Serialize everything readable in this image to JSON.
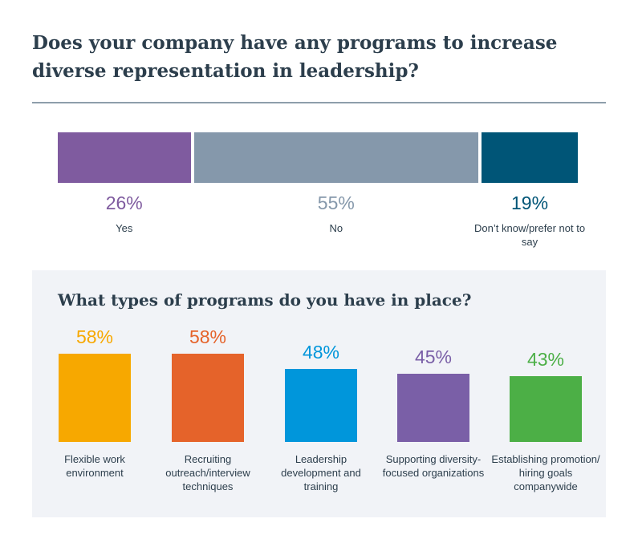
{
  "title": "Does your company have any programs to increase diverse representation in leadership?",
  "chart_data": [
    {
      "type": "bar",
      "orientation": "stacked-horizontal",
      "categories": [
        "Yes",
        "No",
        "Don’t know/prefer not to say"
      ],
      "values": [
        26,
        55,
        19
      ],
      "value_labels": [
        "26%",
        "55%",
        "19%"
      ],
      "colors": [
        "#7f5b9f",
        "#8598ab",
        "#005577"
      ]
    },
    {
      "type": "bar",
      "title": "What types of programs do you have in place?",
      "categories": [
        "Flexible work environment",
        "Recruiting outreach/interview techniques",
        "Leadership development and training",
        "Supporting diversity-focused organizations",
        "Establishing promotion/ hiring goals companywide"
      ],
      "values": [
        58,
        58,
        48,
        45,
        43
      ],
      "value_labels": [
        "58%",
        "58%",
        "48%",
        "45%",
        "43%"
      ],
      "colors": [
        "#f7a800",
        "#e5632a",
        "#0096db",
        "#7a5fa7",
        "#4caf46"
      ]
    }
  ]
}
